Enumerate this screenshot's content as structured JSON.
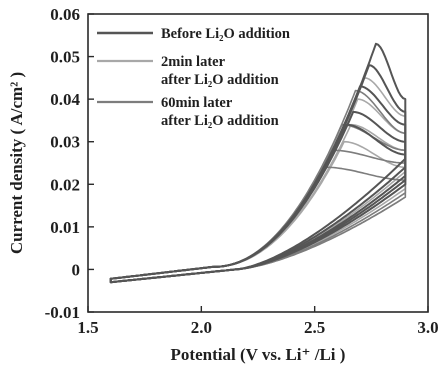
{
  "chart_data": {
    "type": "line",
    "xlabel": "Potential (V vs. Li⁺ /Li )",
    "ylabel": "Current density ( A/cm² )",
    "xlim": [
      1.5,
      3.0
    ],
    "ylim": [
      -0.01,
      0.06
    ],
    "x_ticks": [
      1.5,
      2.0,
      2.5,
      3.0
    ],
    "x_tick_labels": [
      "1.5",
      "2.0",
      "2.5",
      "3.0"
    ],
    "y_ticks": [
      -0.01,
      0,
      0.01,
      0.02,
      0.03,
      0.04,
      0.05,
      0.06
    ],
    "y_tick_labels": [
      "-0.01",
      "0",
      "0.01",
      "0.02",
      "0.03",
      "0.04",
      "0.05",
      "0.06"
    ],
    "grid": false,
    "legend_position": "top-left",
    "legend": [
      {
        "line1": "Before Li₂O addition",
        "line2": ""
      },
      {
        "line1": "2min later",
        "line2": "after Li₂O addition"
      },
      {
        "line1": "60min later",
        "line2": "after Li₂O addition"
      }
    ],
    "series": [
      {
        "name": "Before Li₂O addition",
        "color": "#555555",
        "cycles": [
          {
            "peak_x": 2.77,
            "peak_y": 0.053,
            "end_y": 0.04,
            "return_y": 0.026
          },
          {
            "peak_x": 2.74,
            "peak_y": 0.048,
            "end_y": 0.037,
            "return_y": 0.024
          },
          {
            "peak_x": 2.7,
            "peak_y": 0.043,
            "end_y": 0.034,
            "return_y": 0.022
          },
          {
            "peak_x": 2.67,
            "peak_y": 0.037,
            "end_y": 0.03,
            "return_y": 0.021
          },
          {
            "peak_x": 2.64,
            "peak_y": 0.034,
            "end_y": 0.027,
            "return_y": 0.02
          }
        ]
      },
      {
        "name": "2min later after Li₂O addition",
        "color": "#a8a8a8",
        "cycles": [
          {
            "peak_x": 2.72,
            "peak_y": 0.045,
            "end_y": 0.036,
            "return_y": 0.023
          },
          {
            "peak_x": 2.69,
            "peak_y": 0.04,
            "end_y": 0.032,
            "return_y": 0.021
          },
          {
            "peak_x": 2.66,
            "peak_y": 0.034,
            "end_y": 0.028,
            "return_y": 0.019
          },
          {
            "peak_x": 2.63,
            "peak_y": 0.03,
            "end_y": 0.024,
            "return_y": 0.017
          }
        ]
      },
      {
        "name": "60min later after Li₂O addition",
        "color": "#7d7d7d",
        "cycles": [
          {
            "peak_x": 2.68,
            "peak_y": 0.042,
            "end_y": 0.032,
            "return_y": 0.022
          },
          {
            "peak_x": 2.62,
            "peak_y": 0.034,
            "end_y": 0.028,
            "return_y": 0.02
          },
          {
            "peak_x": 2.58,
            "peak_y": 0.028,
            "end_y": 0.025,
            "return_y": 0.018
          },
          {
            "peak_x": 2.55,
            "peak_y": 0.024,
            "end_y": 0.021,
            "return_y": 0.017
          }
        ]
      }
    ]
  }
}
